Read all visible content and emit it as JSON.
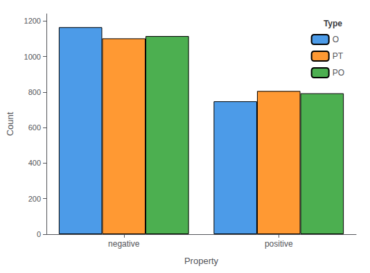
{
  "chart_data": {
    "type": "bar",
    "categories": [
      "negative",
      "positive"
    ],
    "series": [
      {
        "name": "O",
        "color": "#4C9BE8",
        "values": [
          1165,
          748
        ]
      },
      {
        "name": "PT",
        "color": "#FF9933",
        "values": [
          1102,
          806
        ]
      },
      {
        "name": "PO",
        "color": "#4CAF50",
        "values": [
          1115,
          793
        ]
      }
    ],
    "x_label": "Property",
    "y_label": "Count",
    "legend_title": "Type",
    "legend": "upper right",
    "ylim": [
      0,
      1240
    ],
    "yticks": [
      0,
      200,
      400,
      600,
      800,
      1000,
      1200
    ],
    "grid": false
  }
}
